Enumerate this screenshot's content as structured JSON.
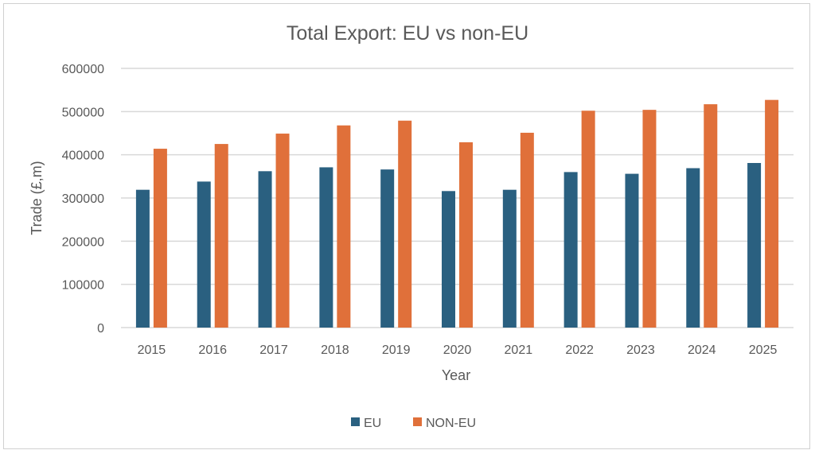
{
  "chart_data": {
    "type": "bar",
    "title": "Total Export: EU vs non-EU",
    "xlabel": "Year",
    "ylabel": "Trade (£,m)",
    "ylim": [
      0,
      600000
    ],
    "yticks": [
      "0",
      "100000",
      "200000",
      "300000",
      "400000",
      "500000",
      "600000"
    ],
    "grid": true,
    "legend": "bottom",
    "categories": [
      "2015",
      "2016",
      "2017",
      "2018",
      "2019",
      "2020",
      "2021",
      "2022",
      "2023",
      "2024",
      "2025"
    ],
    "series": [
      {
        "name": "EU",
        "color": "#2a6080",
        "values": [
          319000,
          338000,
          362000,
          371000,
          366000,
          316000,
          319000,
          360000,
          356000,
          369000,
          381000
        ]
      },
      {
        "name": "NON-EU",
        "color": "#e0703a",
        "values": [
          414000,
          425000,
          449000,
          468000,
          479000,
          429000,
          451000,
          502000,
          504000,
          517000,
          527000
        ]
      }
    ]
  }
}
